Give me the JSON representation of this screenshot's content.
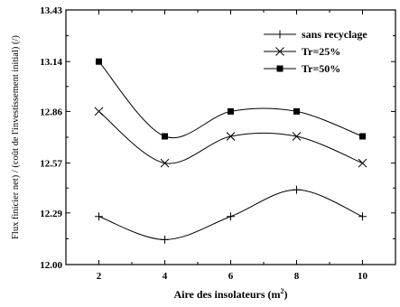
{
  "chart_data": {
    "type": "line",
    "title": "",
    "xlabel": "Aire des insolateurs (m",
    "xlabel_sup": "2",
    "xlabel_close": ")",
    "ylabel": "Flux finicier net) / (coût de l'investissement initial) (/)",
    "xlim": [
      1,
      11
    ],
    "ylim": [
      12.0,
      13.43
    ],
    "xticks": [
      2,
      4,
      6,
      8,
      10
    ],
    "xtick_labels": [
      "2",
      "4",
      "6",
      "8",
      "10"
    ],
    "yticks": [
      12.0,
      12.29,
      12.57,
      12.86,
      13.14,
      13.43
    ],
    "ytick_labels": [
      "12.00",
      "12.29",
      "12.57",
      "12.86",
      "13.14",
      "13.43"
    ],
    "grid": false,
    "legend_position": "top-right",
    "x": [
      2,
      4,
      6,
      8,
      10
    ],
    "series": [
      {
        "name": "sans recyclage",
        "marker": "plus",
        "values": [
          12.27,
          12.14,
          12.27,
          12.42,
          12.27
        ]
      },
      {
        "name": "Tr=25%",
        "marker": "x",
        "values": [
          12.86,
          12.57,
          12.72,
          12.72,
          12.57
        ]
      },
      {
        "name": "Tr=50%",
        "marker": "square",
        "values": [
          13.14,
          12.72,
          12.86,
          12.86,
          12.72
        ]
      }
    ]
  }
}
